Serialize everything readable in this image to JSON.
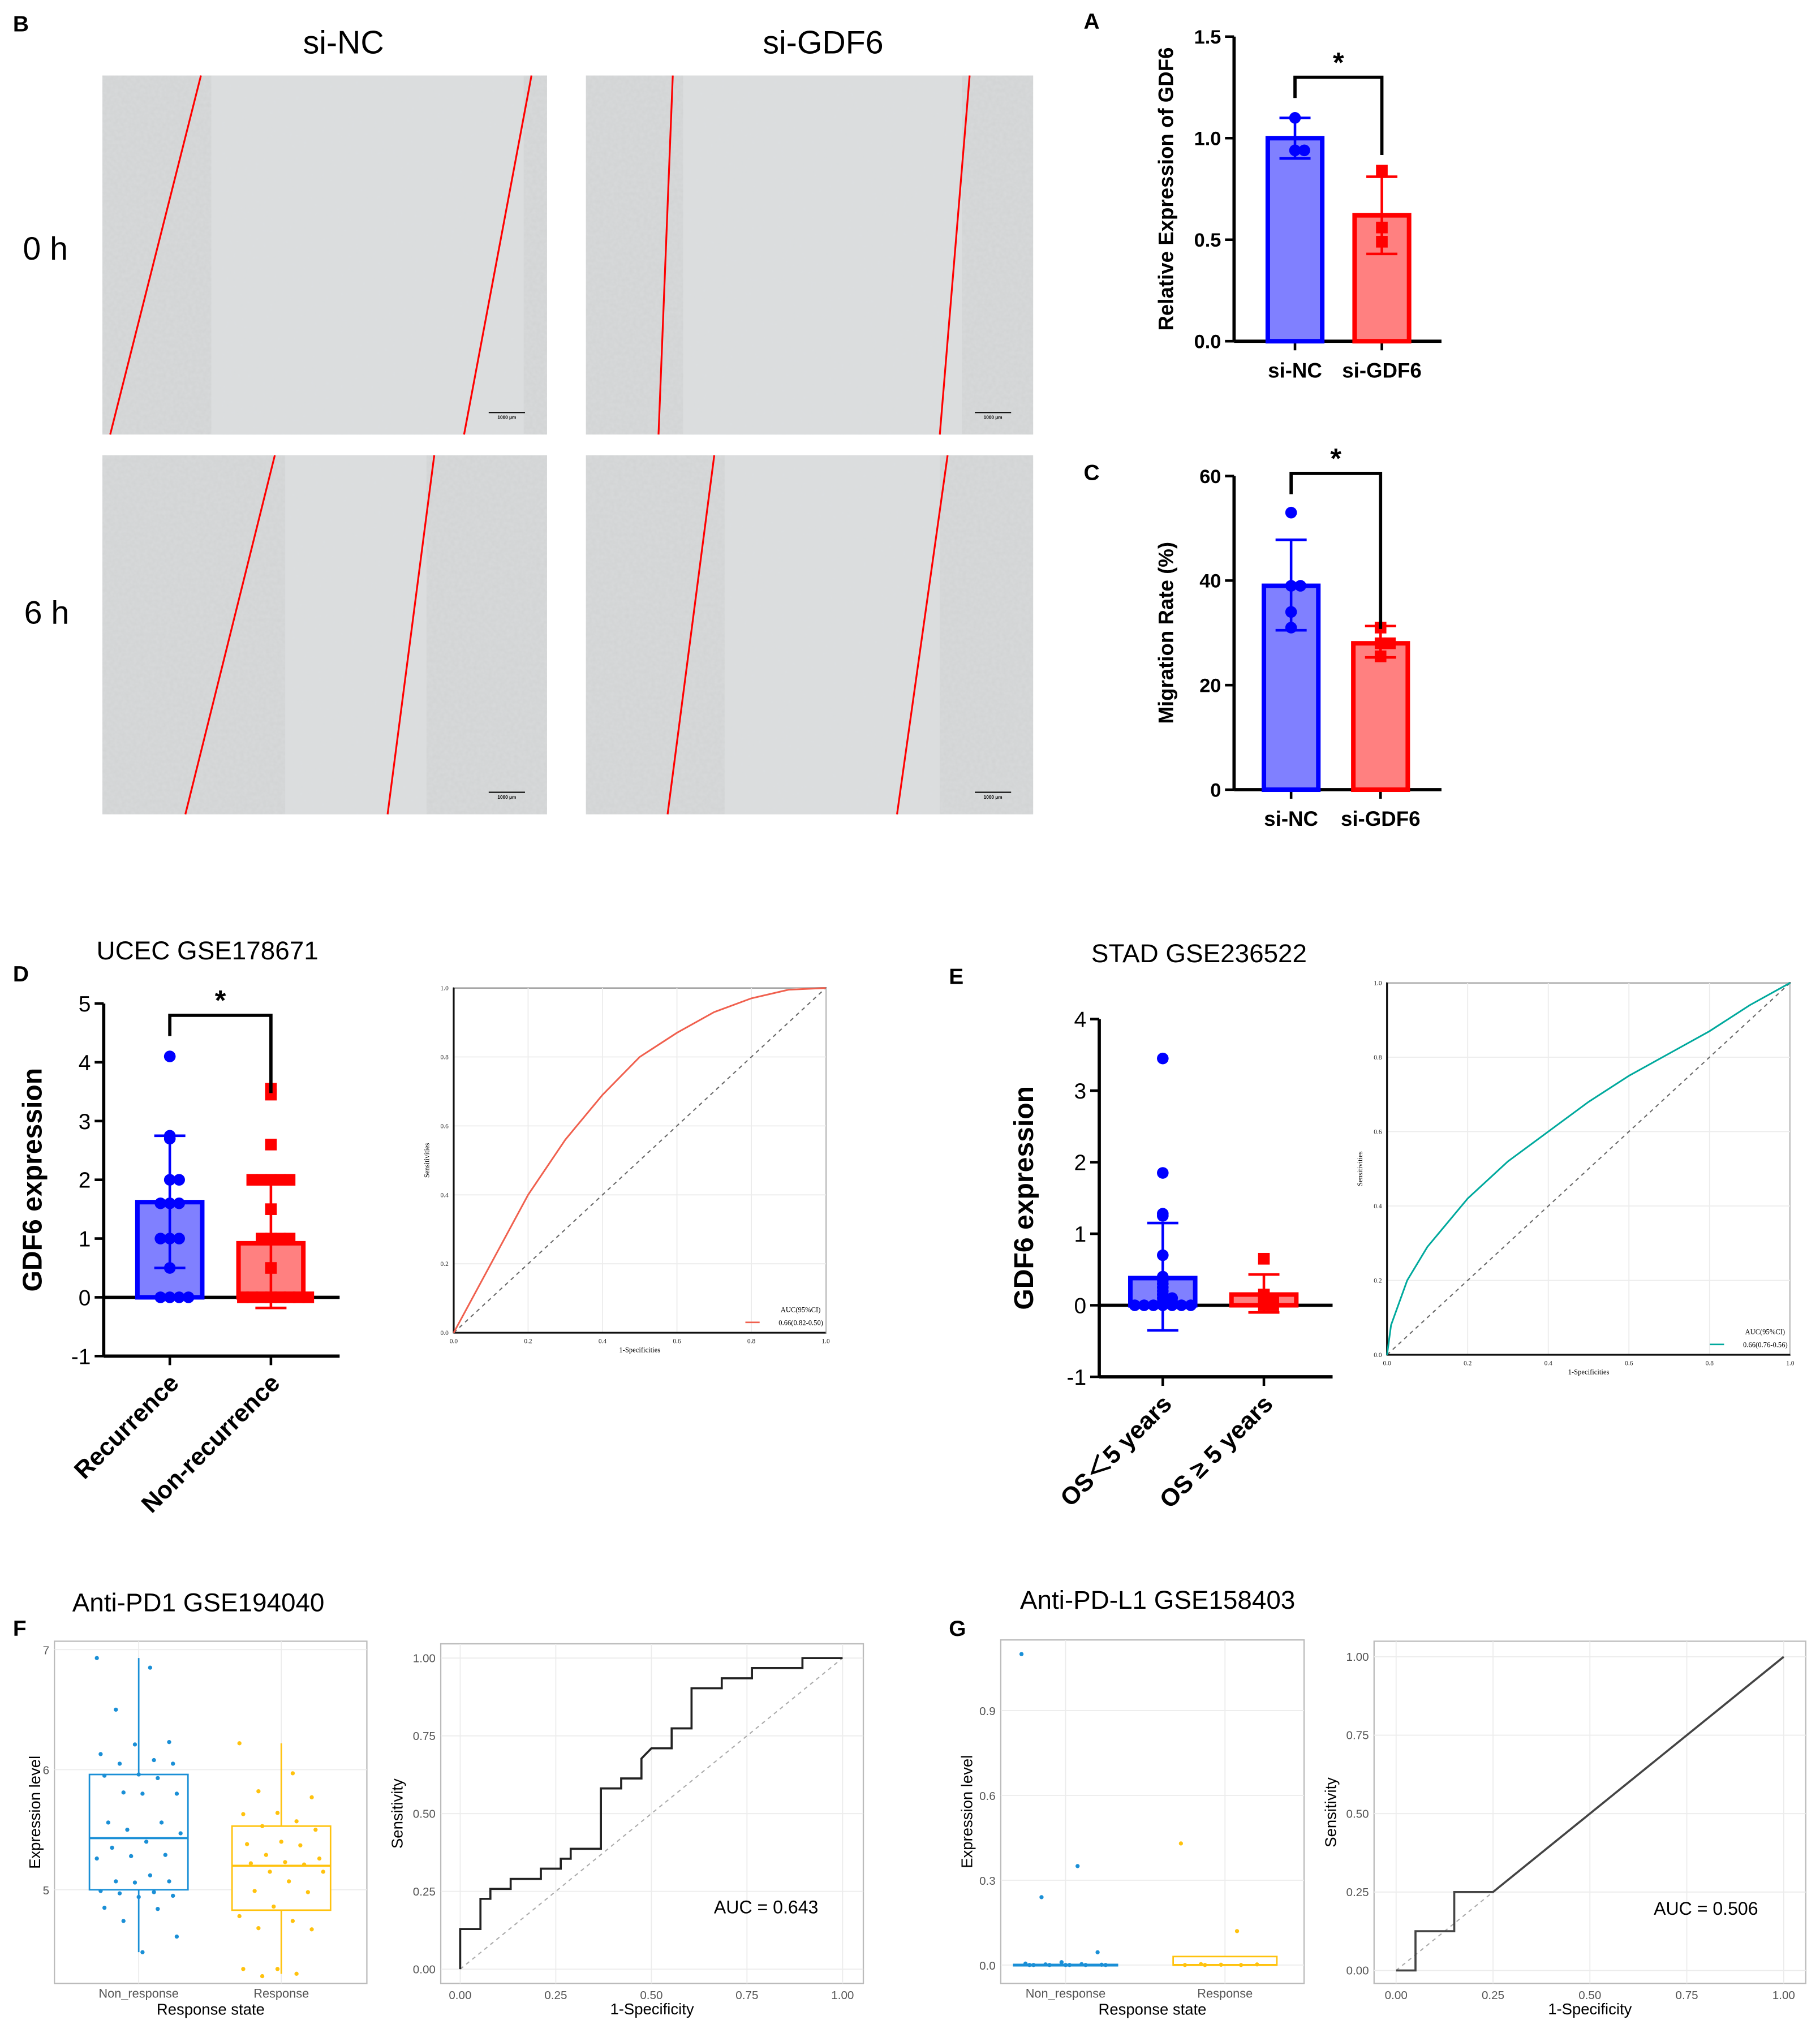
{
  "panel_labels": {
    "A": "A",
    "B": "B",
    "C": "C",
    "D": "D",
    "E": "E",
    "F": "F",
    "G": "G"
  },
  "micrographs": {
    "columns": [
      "si-NC",
      "si-GDF6"
    ],
    "rows": [
      "0 h",
      "6 h"
    ],
    "scale_bar": "1000 μm",
    "line_color": "#ff0000"
  },
  "colors": {
    "blue": "#0000ff",
    "blue_fill": "#8080ff",
    "red": "#ff0000",
    "red_fill": "#ff8080",
    "roc_red": "#f0604e",
    "roc_teal": "#00a99d",
    "box_blue": "#1a8fd6",
    "box_yellow": "#ffc20e"
  },
  "chart_data": [
    {
      "id": "A",
      "type": "bar",
      "title": "",
      "ylabel": "Relative Expression of GDF6",
      "ylim": [
        0,
        1.5
      ],
      "yticks": [
        "0.0",
        "0.5",
        "1.0",
        "1.5"
      ],
      "ytick_values": [
        0,
        0.5,
        1.0,
        1.5
      ],
      "categories": [
        "si-NC",
        "si-GDF6"
      ],
      "values": [
        1.0,
        0.62
      ],
      "error_low": [
        0.9,
        0.43
      ],
      "error_high": [
        1.1,
        0.81
      ],
      "points": [
        [
          1.1,
          0.94,
          0.94
        ],
        [
          0.84,
          0.56,
          0.49
        ]
      ],
      "significance": {
        "label": "*",
        "level": 1.3
      }
    },
    {
      "id": "C",
      "type": "bar",
      "title": "",
      "ylabel": "Migration Rate (%)",
      "ylim": [
        0,
        60
      ],
      "yticks": [
        "0",
        "20",
        "40",
        "60"
      ],
      "ytick_values": [
        0,
        20,
        40,
        60
      ],
      "categories": [
        "si-NC",
        "si-GDF6"
      ],
      "values": [
        39,
        28
      ],
      "error_low": [
        30.5,
        25.3
      ],
      "error_high": [
        47.8,
        31.3
      ],
      "points": [
        [
          53,
          39,
          39,
          34,
          31
        ],
        [
          31,
          28,
          28,
          25.5
        ]
      ],
      "significance": {
        "label": "*",
        "level": 60.5
      }
    },
    {
      "id": "D_bar",
      "type": "bar",
      "title": "UCEC GSE178671",
      "ylabel": "GDF6 expression",
      "ylim": [
        -1,
        5
      ],
      "yticks": [
        "-1",
        "0",
        "1",
        "2",
        "3",
        "4",
        "5"
      ],
      "ytick_values": [
        -1,
        0,
        1,
        2,
        3,
        4,
        5
      ],
      "categories": [
        "Recurrence",
        "Non-recurrence"
      ],
      "values": [
        1.62,
        0.92
      ],
      "error_low": [
        0.5,
        -0.18
      ],
      "error_high": [
        2.75,
        2.02
      ],
      "points": [
        [
          4.1,
          2.75,
          2.7,
          2.0,
          2.0,
          1.6,
          1.6,
          1.6,
          1.0,
          1.0,
          1.0,
          0.5,
          0,
          0,
          0,
          0
        ],
        [
          3.55,
          3.45,
          2.6,
          2.0,
          2.0,
          2.0,
          2.0,
          2.0,
          1.5,
          1.0,
          1.0,
          1.0,
          1.0,
          0.5,
          0,
          0,
          0,
          0,
          0,
          0,
          0,
          0
        ]
      ],
      "significance": {
        "label": "*",
        "level": 4.8
      }
    },
    {
      "id": "D_roc",
      "type": "line",
      "subtype": "roc",
      "xlabel": "1-Specificities",
      "ylabel": "Sensitivities",
      "xlim": [
        0,
        1
      ],
      "ylim": [
        0,
        1
      ],
      "xticks": [
        "0.0",
        "0.2",
        "0.4",
        "0.6",
        "0.8",
        "1.0"
      ],
      "yticks": [
        "0.0",
        "0.2",
        "0.4",
        "0.6",
        "0.8",
        "1.0"
      ],
      "x": [
        0,
        0.1,
        0.2,
        0.3,
        0.4,
        0.5,
        0.6,
        0.7,
        0.8,
        0.9,
        1.0
      ],
      "y": [
        0,
        0.2,
        0.4,
        0.56,
        0.69,
        0.8,
        0.87,
        0.93,
        0.97,
        0.995,
        1.0
      ],
      "legend": {
        "title": "AUC(95%CI)",
        "entry": "0.66(0.82-0.50)",
        "position": "bottom-right"
      }
    },
    {
      "id": "E_bar",
      "type": "bar",
      "title": "STAD GSE236522",
      "ylabel": "GDF6 expression",
      "ylim": [
        -1,
        4
      ],
      "yticks": [
        "-1",
        "0",
        "1",
        "2",
        "3",
        "4"
      ],
      "ytick_values": [
        -1,
        0,
        1,
        2,
        3,
        4
      ],
      "categories": [
        "OS＜5 years",
        "OS ≥ 5 years"
      ],
      "values": [
        0.38,
        0.15
      ],
      "error_low": [
        -0.35,
        -0.1
      ],
      "error_high": [
        1.15,
        0.43
      ],
      "points": [
        [
          3.45,
          1.85,
          1.28,
          1.25,
          0.7,
          0.4,
          0.35,
          0.3,
          0.25,
          0.2,
          0.15,
          0.1,
          0.1,
          0.05,
          0.05,
          0,
          0,
          0,
          0,
          0,
          0,
          0
        ],
        [
          0.65,
          0.15,
          0.1,
          0.1,
          0.05,
          0.05,
          0,
          0
        ]
      ],
      "significance": null
    },
    {
      "id": "E_roc",
      "type": "line",
      "subtype": "roc",
      "xlabel": "1-Specificities",
      "ylabel": "Sensitivities",
      "xlim": [
        0,
        1
      ],
      "ylim": [
        0,
        1
      ],
      "xticks": [
        "0.0",
        "0.2",
        "0.4",
        "0.6",
        "0.8",
        "1.0"
      ],
      "yticks": [
        "0.0",
        "0.2",
        "0.4",
        "0.6",
        "0.8",
        "1.0"
      ],
      "x": [
        0,
        0.01,
        0.05,
        0.1,
        0.2,
        0.3,
        0.4,
        0.5,
        0.6,
        0.7,
        0.8,
        0.9,
        1.0
      ],
      "y": [
        0,
        0.08,
        0.2,
        0.29,
        0.42,
        0.52,
        0.6,
        0.68,
        0.75,
        0.81,
        0.87,
        0.94,
        1.0
      ],
      "legend": {
        "title": "AUC(95%CI)",
        "entry": "0.66(0.76-0.56)",
        "position": "bottom-right"
      }
    },
    {
      "id": "F_box",
      "type": "boxplot",
      "title": "Anti-PD1 GSE194040",
      "xlabel": "Response state",
      "ylabel": "Expression level",
      "ylim": [
        4.22,
        7.07
      ],
      "yticks": [
        "5",
        "6",
        "7"
      ],
      "ytick_values": [
        5,
        6,
        7
      ],
      "categories": [
        "Non_response",
        "Response"
      ],
      "boxes": [
        {
          "q1": 5.0,
          "median": 5.43,
          "q3": 5.96,
          "whisker_low": 4.48,
          "whisker_high": 6.93
        },
        {
          "q1": 4.83,
          "median": 5.2,
          "q3": 5.53,
          "whisker_low": 4.3,
          "whisker_high": 6.22
        }
      ],
      "points": [
        [
          6.93,
          6.85,
          6.5,
          6.23,
          6.21,
          6.13,
          6.08,
          6.05,
          6.05,
          5.96,
          5.95,
          5.93,
          5.81,
          5.8,
          5.8,
          5.56,
          5.56,
          5.5,
          5.47,
          5.4,
          5.35,
          5.29,
          5.28,
          5.26,
          5.12,
          5.07,
          5.07,
          5.06,
          4.99,
          4.98,
          4.97,
          4.95,
          4.94,
          4.85,
          4.84,
          4.74,
          4.61,
          4.48
        ],
        [
          6.22,
          5.97,
          5.82,
          5.77,
          5.64,
          5.63,
          5.57,
          5.53,
          5.5,
          5.4,
          5.38,
          5.37,
          5.29,
          5.26,
          5.23,
          5.22,
          5.21,
          5.15,
          5.15,
          5.07,
          4.99,
          4.98,
          4.86,
          4.78,
          4.74,
          4.68,
          4.67,
          4.34,
          4.34,
          4.3,
          4.28
        ]
      ]
    },
    {
      "id": "F_roc",
      "type": "line",
      "subtype": "roc-step",
      "xlabel": "1-Specificity",
      "ylabel": "Sensitivity",
      "xlim": [
        0,
        1
      ],
      "ylim": [
        0,
        1
      ],
      "xticks": [
        "0.00",
        "0.25",
        "0.50",
        "0.75",
        "1.00"
      ],
      "yticks": [
        "0.00",
        "0.25",
        "0.50",
        "0.75",
        "1.00"
      ],
      "x": [
        0,
        0,
        0.053,
        0.053,
        0.079,
        0.079,
        0.132,
        0.132,
        0.211,
        0.211,
        0.263,
        0.263,
        0.289,
        0.289,
        0.368,
        0.368,
        0.421,
        0.421,
        0.474,
        0.474,
        0.5,
        0.553,
        0.553,
        0.605,
        0.605,
        0.684,
        0.684,
        0.763,
        0.763,
        0.895,
        0.895,
        1.0
      ],
      "y": [
        0,
        0.129,
        0.129,
        0.226,
        0.226,
        0.258,
        0.258,
        0.29,
        0.29,
        0.323,
        0.323,
        0.355,
        0.355,
        0.387,
        0.387,
        0.581,
        0.581,
        0.613,
        0.613,
        0.677,
        0.71,
        0.71,
        0.774,
        0.774,
        0.903,
        0.903,
        0.935,
        0.935,
        0.968,
        0.968,
        1.0,
        1.0
      ],
      "annotation": "AUC = 0.643"
    },
    {
      "id": "G_box",
      "type": "boxplot",
      "title": "Anti-PD-L1 GSE158403",
      "xlabel": "Response state",
      "ylabel": "Expression level",
      "ylim": [
        -0.065,
        1.15
      ],
      "yticks": [
        "0.0",
        "0.3",
        "0.6",
        "0.9"
      ],
      "ytick_values": [
        0,
        0.3,
        0.6,
        0.9
      ],
      "categories": [
        "Non_response",
        "Response"
      ],
      "boxes": [
        {
          "q1": 0.0,
          "median": 0.0,
          "q3": 0.002,
          "whisker_low": 0.0,
          "whisker_high": 0.004
        },
        {
          "q1": 0.0,
          "median": 0.0,
          "q3": 0.03,
          "whisker_low": 0.0,
          "whisker_high": 0.03
        }
      ],
      "points": [
        [
          1.1,
          0.35,
          0.24,
          0.045,
          0.01,
          0.005,
          0.003,
          0.002,
          0.001,
          0,
          0,
          0,
          0,
          0,
          0,
          0
        ],
        [
          0.43,
          0.12,
          0.003,
          0.002,
          0.001,
          0,
          0,
          0
        ]
      ]
    },
    {
      "id": "G_roc",
      "type": "line",
      "subtype": "roc-step",
      "xlabel": "1-Specificity",
      "ylabel": "Sensitivity",
      "xlim": [
        0,
        1
      ],
      "ylim": [
        0,
        1
      ],
      "xticks": [
        "0.00",
        "0.25",
        "0.50",
        "0.75",
        "1.00"
      ],
      "yticks": [
        "0.00",
        "0.25",
        "0.50",
        "0.75",
        "1.00"
      ],
      "x": [
        0,
        0.05,
        0.05,
        0.15,
        0.15,
        0.25,
        1.0
      ],
      "y": [
        0,
        0,
        0.125,
        0.125,
        0.25,
        0.25,
        1.0
      ],
      "annotation": "AUC = 0.506"
    }
  ]
}
